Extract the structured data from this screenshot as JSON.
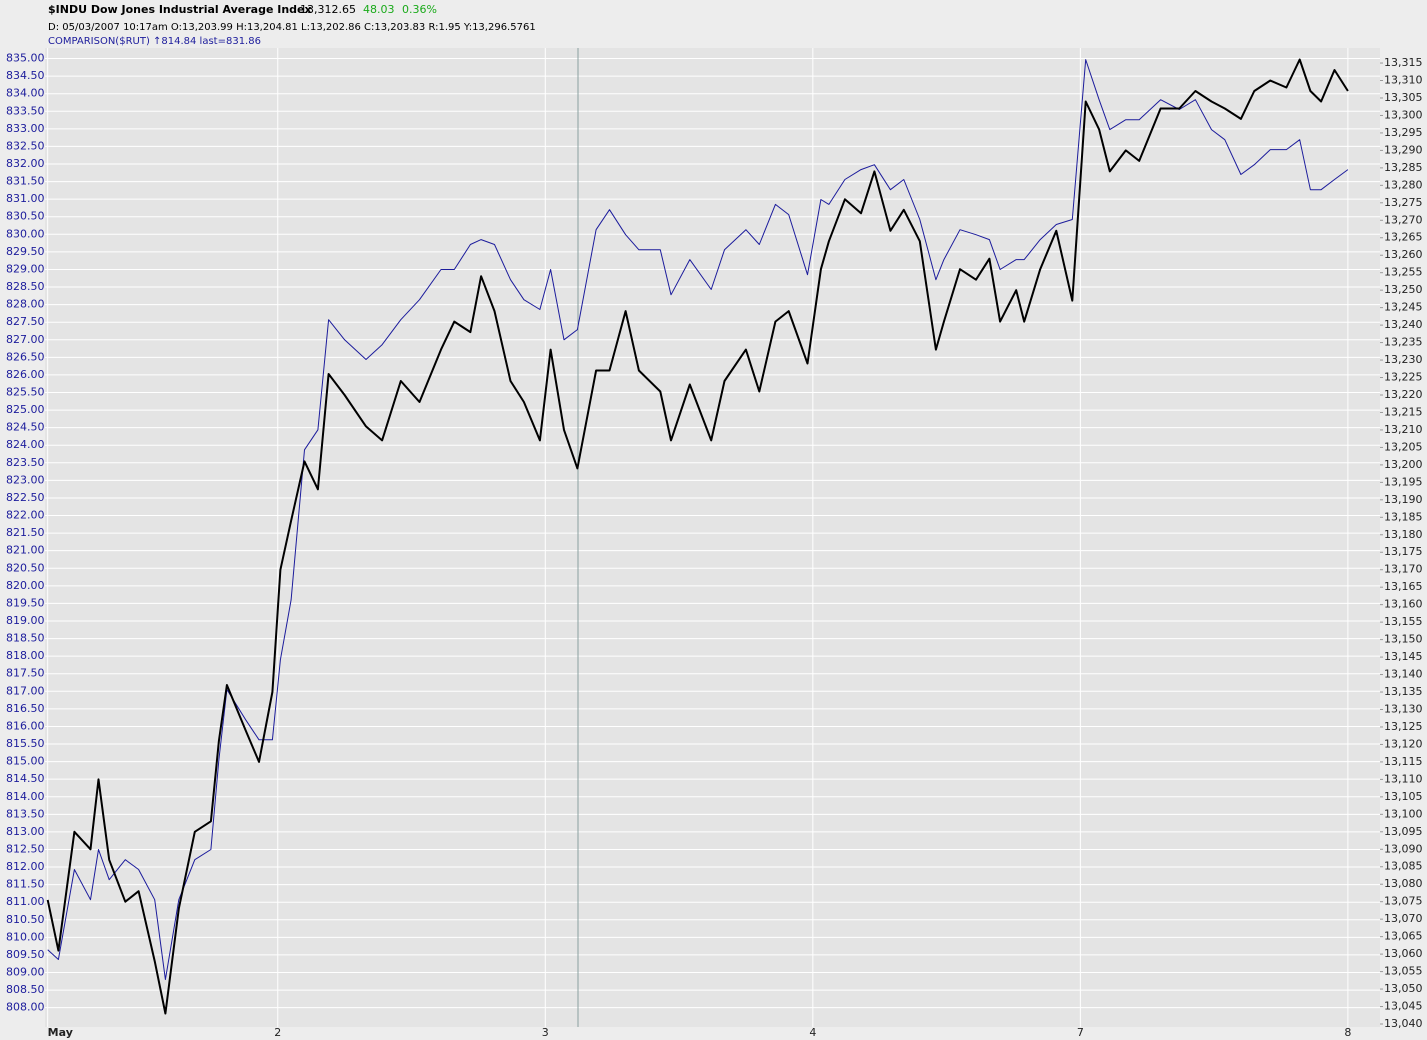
{
  "chart_data": {
    "type": "line",
    "header": {
      "last": "13,312.65",
      "change": "48.03",
      "change_pct": "0.36%",
      "info": "D: 05/03/2007  10:17am O:13,203.99 H:13,204.81 L:13,202.86 C:13,203.83 R:1.95 Y:13,296.5761",
      "comparison_info": "↑814.84 last=831.86"
    },
    "grid": true,
    "x": [
      0.14,
      0.18,
      0.24,
      0.3,
      0.33,
      0.37,
      0.43,
      0.48,
      0.54,
      0.58,
      0.63,
      0.69,
      0.75,
      0.78,
      0.81,
      0.88,
      0.93,
      0.98,
      1.01,
      1.05,
      1.1,
      1.15,
      1.19,
      1.25,
      1.33,
      1.39,
      1.46,
      1.53,
      1.61,
      1.66,
      1.72,
      1.76,
      1.81,
      1.87,
      1.92,
      1.98,
      2.02,
      2.07,
      2.12,
      2.19,
      2.24,
      2.3,
      2.35,
      2.43,
      2.47,
      2.54,
      2.62,
      2.67,
      2.75,
      2.8,
      2.86,
      2.91,
      2.98,
      3.03,
      3.06,
      3.12,
      3.18,
      3.23,
      3.29,
      3.34,
      3.4,
      3.46,
      3.49,
      3.55,
      3.61,
      3.66,
      3.7,
      3.76,
      3.79,
      3.85,
      3.91,
      3.97,
      4.02,
      4.07,
      4.11,
      4.17,
      4.22,
      4.3,
      4.37,
      4.43,
      4.49,
      4.54,
      4.6,
      4.65,
      4.71,
      4.77,
      4.82,
      4.86,
      4.9,
      4.95,
      5.0
    ],
    "xlim": [
      0.13,
      5.12
    ],
    "xticks": [
      {
        "value": 0.14,
        "label": "May"
      },
      {
        "value": 1,
        "label": "2"
      },
      {
        "value": 2,
        "label": "3"
      },
      {
        "value": 3,
        "label": "4"
      },
      {
        "value": 4,
        "label": "7"
      },
      {
        "value": 5,
        "label": "8"
      }
    ],
    "series": [
      {
        "name": "$INDU Dow Jones Industrial Average Index",
        "color": "#000000",
        "axis": "y2",
        "values": [
          13075.5,
          13061,
          13095,
          13090,
          13110,
          13087,
          13075,
          13078,
          13058,
          13043,
          13073,
          13095,
          13098,
          13121,
          13137,
          13124,
          13115,
          13135,
          13170,
          13184,
          13201,
          13193,
          13226,
          13220,
          13211,
          13207,
          13224,
          13218,
          13233,
          13241,
          13238,
          13254,
          13244,
          13224,
          13218,
          13207,
          13233,
          13210,
          13199,
          13227,
          13227,
          13244,
          13227,
          13221,
          13207,
          13223,
          13207,
          13224,
          13233,
          13221,
          13241,
          13244,
          13229,
          13256,
          13264,
          13276,
          13272,
          13284,
          13267,
          13273,
          13264,
          13233,
          13241,
          13256,
          13253,
          13259,
          13241,
          13250,
          13241,
          13256,
          13267,
          13247,
          13304,
          13296,
          13284,
          13290,
          13287,
          13302,
          13302,
          13307,
          13304,
          13302,
          13299,
          13307,
          13310,
          13308,
          13316,
          13307,
          13304,
          13313,
          13307
        ]
      },
      {
        "name": "COMPARISON($RUT)",
        "color": "#1c1c9c",
        "axis": "y",
        "values": [
          809.65,
          809.37,
          811.93,
          811.07,
          812.5,
          811.64,
          812.21,
          811.93,
          811.07,
          808.8,
          811.07,
          812.21,
          812.5,
          815.06,
          817.05,
          816.19,
          815.62,
          815.62,
          817.9,
          819.6,
          823.87,
          824.44,
          827.57,
          827.0,
          826.44,
          826.86,
          827.57,
          828.14,
          829.0,
          829.0,
          829.71,
          829.85,
          829.71,
          828.71,
          828.14,
          827.86,
          829.0,
          827.0,
          827.29,
          830.13,
          830.7,
          829.99,
          829.56,
          829.56,
          828.28,
          829.28,
          828.43,
          829.56,
          830.13,
          829.71,
          830.85,
          830.56,
          828.85,
          830.99,
          830.85,
          831.56,
          831.84,
          831.98,
          831.27,
          831.56,
          830.42,
          828.71,
          829.28,
          830.13,
          829.99,
          829.85,
          829.0,
          829.28,
          829.28,
          829.85,
          830.28,
          830.42,
          834.97,
          833.83,
          832.98,
          833.26,
          833.26,
          833.83,
          833.55,
          833.83,
          832.98,
          832.69,
          831.7,
          831.98,
          832.41,
          832.41,
          832.69,
          831.27,
          831.27,
          831.56,
          831.84
        ]
      }
    ],
    "ylim": [
      807.45,
      835.3
    ],
    "yticks": [
      {
        "value": 808,
        "label": "808.00"
      },
      {
        "value": 808.5,
        "label": "808.50"
      },
      {
        "value": 809,
        "label": "809.00"
      },
      {
        "value": 809.5,
        "label": "809.50"
      },
      {
        "value": 810,
        "label": "810.00"
      },
      {
        "value": 810.5,
        "label": "810.50"
      },
      {
        "value": 811,
        "label": "811.00"
      },
      {
        "value": 811.5,
        "label": "811.50"
      },
      {
        "value": 812,
        "label": "812.00"
      },
      {
        "value": 812.5,
        "label": "812.50"
      },
      {
        "value": 813,
        "label": "813.00"
      },
      {
        "value": 813.5,
        "label": "813.50"
      },
      {
        "value": 814,
        "label": "814.00"
      },
      {
        "value": 814.5,
        "label": "814.50"
      },
      {
        "value": 815,
        "label": "815.00"
      },
      {
        "value": 815.5,
        "label": "815.50"
      },
      {
        "value": 816,
        "label": "816.00"
      },
      {
        "value": 816.5,
        "label": "816.50"
      },
      {
        "value": 817,
        "label": "817.00"
      },
      {
        "value": 817.5,
        "label": "817.50"
      },
      {
        "value": 818,
        "label": "818.00"
      },
      {
        "value": 818.5,
        "label": "818.50"
      },
      {
        "value": 819,
        "label": "819.00"
      },
      {
        "value": 819.5,
        "label": "819.50"
      },
      {
        "value": 820,
        "label": "820.00"
      },
      {
        "value": 820.5,
        "label": "820.50"
      },
      {
        "value": 821,
        "label": "821.00"
      },
      {
        "value": 821.5,
        "label": "821.50"
      },
      {
        "value": 822,
        "label": "822.00"
      },
      {
        "value": 822.5,
        "label": "822.50"
      },
      {
        "value": 823,
        "label": "823.00"
      },
      {
        "value": 823.5,
        "label": "823.50"
      },
      {
        "value": 824,
        "label": "824.00"
      },
      {
        "value": 824.5,
        "label": "824.50"
      },
      {
        "value": 825,
        "label": "825.00"
      },
      {
        "value": 825.5,
        "label": "825.50"
      },
      {
        "value": 826,
        "label": "826.00"
      },
      {
        "value": 826.5,
        "label": "826.50"
      },
      {
        "value": 827,
        "label": "827.00"
      },
      {
        "value": 827.5,
        "label": "827.50"
      },
      {
        "value": 828,
        "label": "828.00"
      },
      {
        "value": 828.5,
        "label": "828.50"
      },
      {
        "value": 829,
        "label": "829.00"
      },
      {
        "value": 829.5,
        "label": "829.50"
      },
      {
        "value": 830,
        "label": "830.00"
      },
      {
        "value": 830.5,
        "label": "830.50"
      },
      {
        "value": 831,
        "label": "831.00"
      },
      {
        "value": 831.5,
        "label": "831.50"
      },
      {
        "value": 832,
        "label": "832.00"
      },
      {
        "value": 832.5,
        "label": "832.50"
      },
      {
        "value": 833,
        "label": "833.00"
      },
      {
        "value": 833.5,
        "label": "833.50"
      },
      {
        "value": 834,
        "label": "834.00"
      },
      {
        "value": 834.5,
        "label": "834.50"
      },
      {
        "value": 835,
        "label": "835.00"
      }
    ],
    "y2lim": [
      13039.14,
      13319.3
    ],
    "y2ticks": [
      {
        "value": 13040,
        "label": "13,040"
      },
      {
        "value": 13045,
        "label": "13,045"
      },
      {
        "value": 13050,
        "label": "13,050"
      },
      {
        "value": 13055,
        "label": "13,055"
      },
      {
        "value": 13060,
        "label": "13,060"
      },
      {
        "value": 13065,
        "label": "13,065"
      },
      {
        "value": 13070,
        "label": "13,070"
      },
      {
        "value": 13075,
        "label": "13,075"
      },
      {
        "value": 13080,
        "label": "13,080"
      },
      {
        "value": 13085,
        "label": "13,085"
      },
      {
        "value": 13090,
        "label": "13,090"
      },
      {
        "value": 13095,
        "label": "13,095"
      },
      {
        "value": 13100,
        "label": "13,100"
      },
      {
        "value": 13105,
        "label": "13,105"
      },
      {
        "value": 13110,
        "label": "13,110"
      },
      {
        "value": 13115,
        "label": "13,115"
      },
      {
        "value": 13120,
        "label": "13,120"
      },
      {
        "value": 13125,
        "label": "13,125"
      },
      {
        "value": 13130,
        "label": "13,130"
      },
      {
        "value": 13135,
        "label": "13,135"
      },
      {
        "value": 13140,
        "label": "13,140"
      },
      {
        "value": 13145,
        "label": "13,145"
      },
      {
        "value": 13150,
        "label": "13,150"
      },
      {
        "value": 13155,
        "label": "13,155"
      },
      {
        "value": 13160,
        "label": "13,160"
      },
      {
        "value": 13165,
        "label": "13,165"
      },
      {
        "value": 13170,
        "label": "13,170"
      },
      {
        "value": 13175,
        "label": "13,175"
      },
      {
        "value": 13180,
        "label": "13,180"
      },
      {
        "value": 13185,
        "label": "13,185"
      },
      {
        "value": 13190,
        "label": "13,190"
      },
      {
        "value": 13195,
        "label": "13,195"
      },
      {
        "value": 13200,
        "label": "13,200"
      },
      {
        "value": 13205,
        "label": "13,205"
      },
      {
        "value": 13210,
        "label": "13,210"
      },
      {
        "value": 13215,
        "label": "13,215"
      },
      {
        "value": 13220,
        "label": "13,220"
      },
      {
        "value": 13225,
        "label": "13,225"
      },
      {
        "value": 13230,
        "label": "13,230"
      },
      {
        "value": 13235,
        "label": "13,235"
      },
      {
        "value": 13240,
        "label": "13,240"
      },
      {
        "value": 13245,
        "label": "13,245"
      },
      {
        "value": 13250,
        "label": "13,250"
      },
      {
        "value": 13255,
        "label": "13,255"
      },
      {
        "value": 13260,
        "label": "13,260"
      },
      {
        "value": 13265,
        "label": "13,265"
      },
      {
        "value": 13270,
        "label": "13,270"
      },
      {
        "value": 13275,
        "label": "13,275"
      },
      {
        "value": 13280,
        "label": "13,280"
      },
      {
        "value": 13285,
        "label": "13,285"
      },
      {
        "value": 13290,
        "label": "13,290"
      },
      {
        "value": 13295,
        "label": "13,295"
      },
      {
        "value": 13300,
        "label": "13,300"
      },
      {
        "value": 13305,
        "label": "13,305"
      },
      {
        "value": 13310,
        "label": "13,310"
      },
      {
        "value": 13315,
        "label": "13,315"
      }
    ]
  }
}
